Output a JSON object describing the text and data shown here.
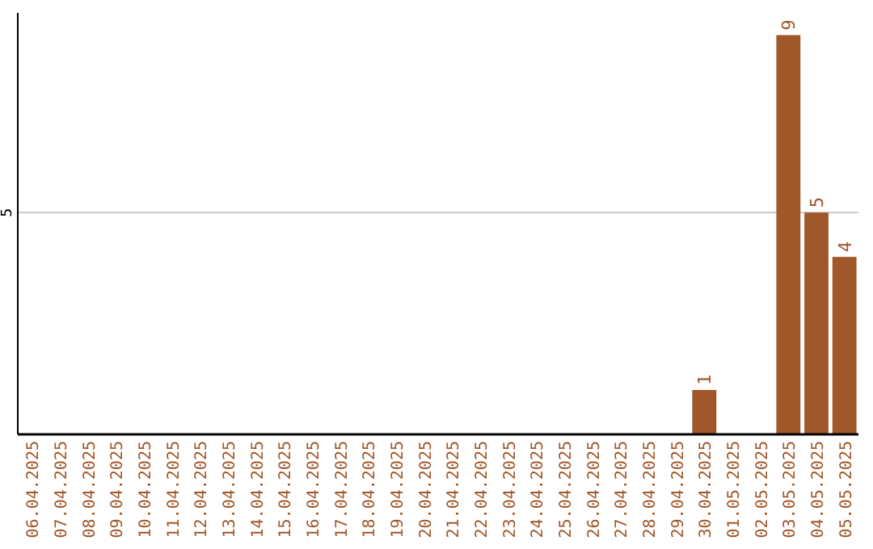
{
  "chart_data": {
    "type": "bar",
    "categories": [
      "06.04.2025",
      "07.04.2025",
      "08.04.2025",
      "09.04.2025",
      "10.04.2025",
      "11.04.2025",
      "12.04.2025",
      "13.04.2025",
      "14.04.2025",
      "15.04.2025",
      "16.04.2025",
      "17.04.2025",
      "18.04.2025",
      "19.04.2025",
      "20.04.2025",
      "21.04.2025",
      "22.04.2025",
      "23.04.2025",
      "24.04.2025",
      "25.04.2025",
      "26.04.2025",
      "27.04.2025",
      "28.04.2025",
      "29.04.2025",
      "30.04.2025",
      "01.05.2025",
      "02.05.2025",
      "03.05.2025",
      "04.05.2025",
      "05.05.2025"
    ],
    "values": [
      null,
      null,
      null,
      null,
      null,
      null,
      null,
      null,
      null,
      null,
      null,
      null,
      null,
      null,
      null,
      null,
      null,
      null,
      null,
      null,
      null,
      null,
      null,
      null,
      1,
      null,
      null,
      9,
      5,
      4
    ],
    "value_labels": [
      null,
      null,
      null,
      null,
      null,
      null,
      null,
      null,
      null,
      null,
      null,
      null,
      null,
      null,
      null,
      null,
      null,
      null,
      null,
      null,
      null,
      null,
      null,
      null,
      "1",
      null,
      null,
      "9",
      "5",
      "4"
    ],
    "color": "#a0572a",
    "ylim": [
      0,
      9.5
    ],
    "yticks": [
      5
    ],
    "grid": "y"
  }
}
